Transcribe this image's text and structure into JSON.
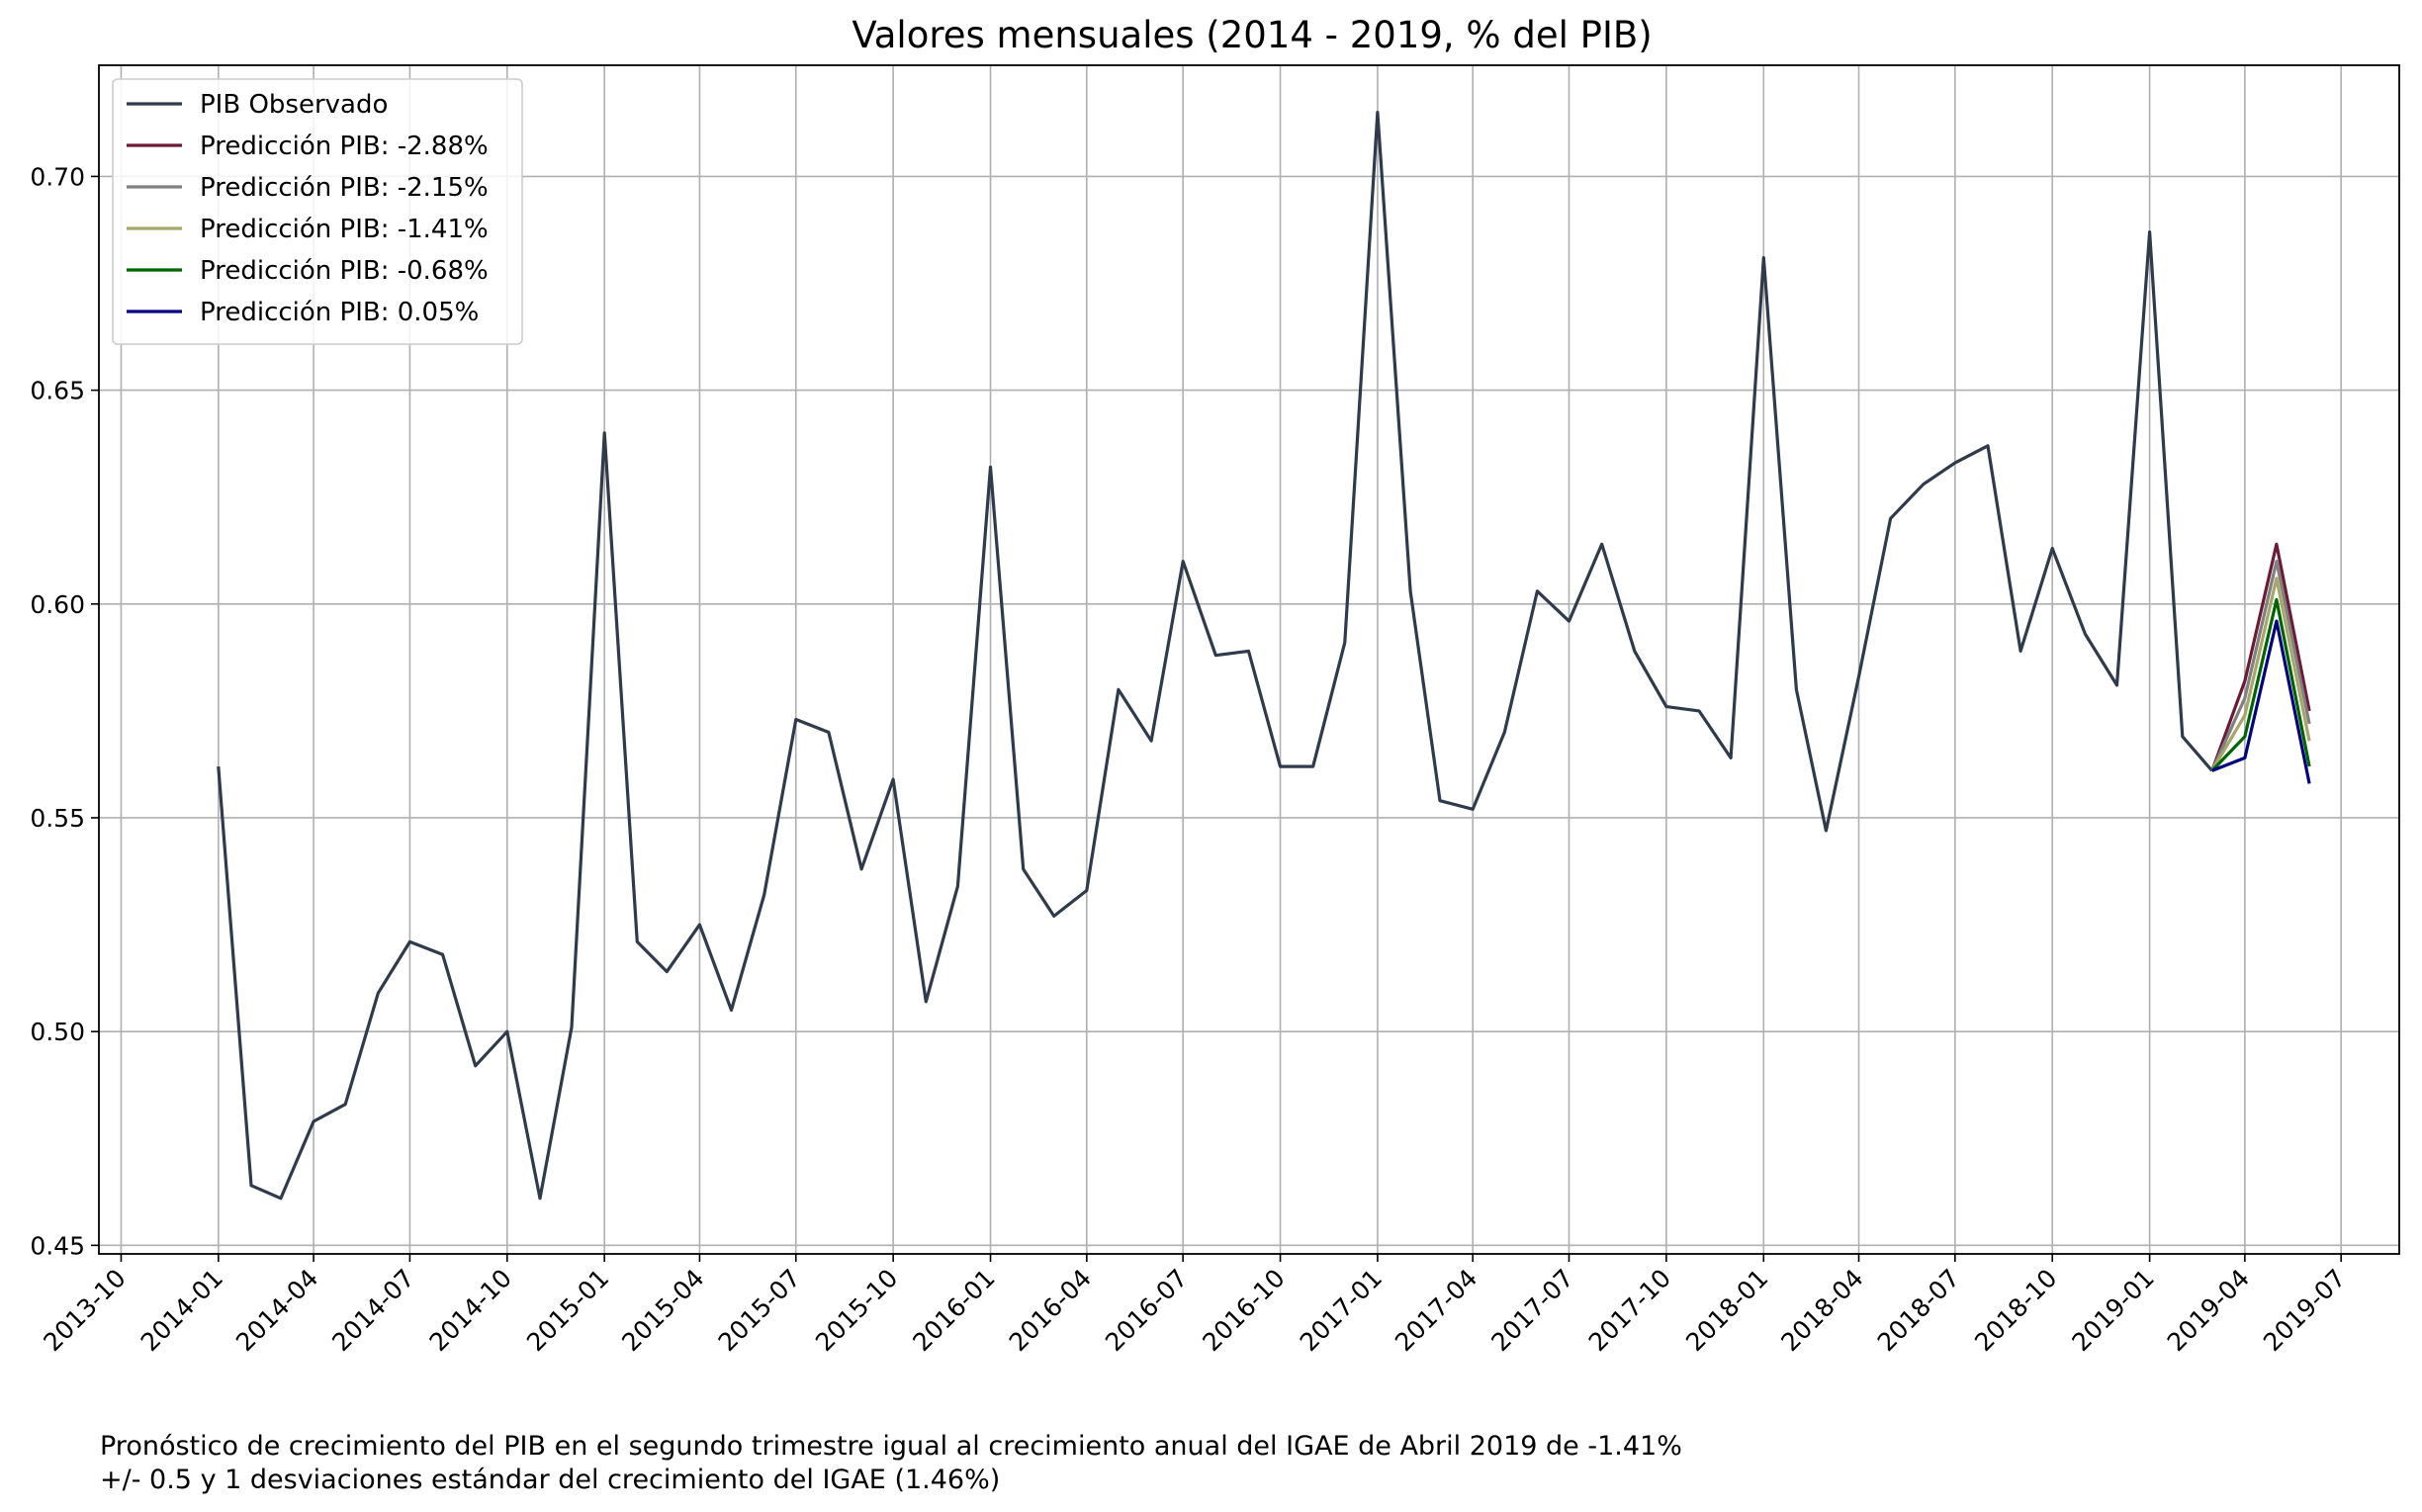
{
  "chart_data": {
    "type": "line",
    "title": "Valores mensuales (2014 - 2019, % del PIB)",
    "xlabel": "",
    "ylabel": "",
    "x_range": [
      "2013-09-10",
      "2019-08-25"
    ],
    "ylim": [
      0.448,
      0.726
    ],
    "grid": true,
    "legend_position": "top-left",
    "x_ticks": [
      "2013-10",
      "2014-01",
      "2014-04",
      "2014-07",
      "2014-10",
      "2015-01",
      "2015-04",
      "2015-07",
      "2015-10",
      "2016-01",
      "2016-04",
      "2016-07",
      "2016-10",
      "2017-01",
      "2017-04",
      "2017-07",
      "2017-10",
      "2018-01",
      "2018-04",
      "2018-07",
      "2018-10",
      "2019-01",
      "2019-04",
      "2019-07"
    ],
    "y_ticks": [
      0.45,
      0.5,
      0.55,
      0.6,
      0.65,
      0.7
    ],
    "y_tick_labels": [
      "0.45",
      "0.50",
      "0.55",
      "0.60",
      "0.65",
      "0.70"
    ],
    "observed": {
      "name": "PIB Observado",
      "color": "#2f3a4b",
      "start": "2014-01",
      "values": [
        0.562,
        0.464,
        0.461,
        0.479,
        0.483,
        0.509,
        0.521,
        0.518,
        0.492,
        0.5,
        0.461,
        0.501,
        0.64,
        0.521,
        0.514,
        0.525,
        0.505,
        0.532,
        0.573,
        0.57,
        0.538,
        0.559,
        0.507,
        0.534,
        0.632,
        0.538,
        0.527,
        0.533,
        0.58,
        0.568,
        0.61,
        0.588,
        0.589,
        0.562,
        0.562,
        0.591,
        0.715,
        0.603,
        0.554,
        0.552,
        0.57,
        0.603,
        0.596,
        0.614,
        0.589,
        0.576,
        0.575,
        0.564,
        0.681,
        0.58,
        0.547,
        0.583,
        0.62,
        0.628,
        0.633,
        0.637,
        0.589,
        0.613,
        0.593,
        0.581,
        0.687,
        0.569,
        0.561
      ]
    },
    "predictions": {
      "x": [
        "2019-03",
        "2019-04",
        "2019-05",
        "2019-06"
      ],
      "series": [
        {
          "name": "Predicción PIB: -2.88%",
          "color": "#6d1a36",
          "values": [
            0.561,
            0.582,
            0.614,
            0.575
          ]
        },
        {
          "name": "Predicción PIB: -2.15%",
          "color": "#808080",
          "values": [
            0.561,
            0.578,
            0.61,
            0.572
          ]
        },
        {
          "name": "Predicción PIB: -1.41%",
          "color": "#a7a66a",
          "values": [
            0.561,
            0.574,
            0.606,
            0.568
          ]
        },
        {
          "name": "Predicción PIB: -0.68%",
          "color": "#006400",
          "values": [
            0.561,
            0.569,
            0.601,
            0.562
          ]
        },
        {
          "name": "Predicción PIB: 0.05%",
          "color": "#000080",
          "values": [
            0.561,
            0.564,
            0.596,
            0.558
          ]
        }
      ]
    }
  },
  "footnote": {
    "line1": "Pronóstico de crecimiento del PIB en el segundo trimestre igual al crecimiento anual del IGAE de Abril 2019 de -1.41%",
    "line2": "+/- 0.5 y 1 desviaciones estándar del crecimiento del IGAE (1.46%)"
  }
}
